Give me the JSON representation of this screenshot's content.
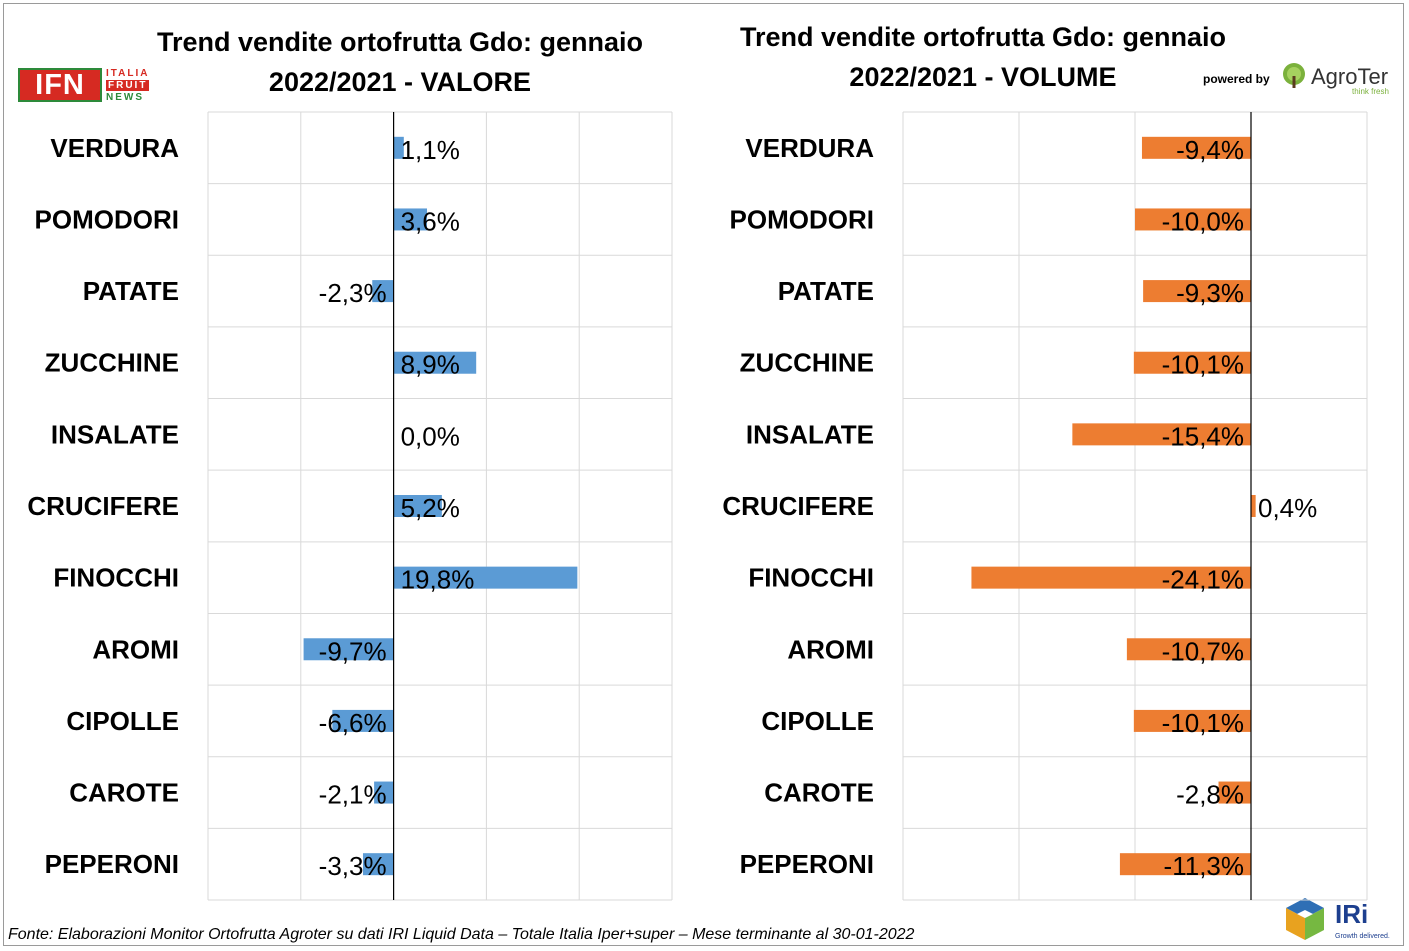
{
  "titles": {
    "left": [
      "Trend vendite ortofrutta Gdo: gennaio",
      "2022/2021 - VALORE"
    ],
    "right": [
      "Trend vendite ortofrutta Gdo: gennaio",
      "2022/2021 - VOLUME"
    ]
  },
  "logos": {
    "ifn": {
      "main": "IFN",
      "line1": "ITALIA",
      "line2": "FRUIT",
      "line3": "NEWS"
    },
    "powered_by": "powered by",
    "agroter": {
      "name": "AgroTer",
      "tagline": "think fresh"
    },
    "iri": {
      "name": "IRi",
      "tagline": "Growth delivered."
    }
  },
  "footer": "Fonte: Elaborazioni Monitor Ortofrutta Agroter su dati IRI Liquid Data – Totale Italia Iper+super – Mese terminante al 30-01-2022",
  "colors": {
    "valore": "#5b9bd5",
    "volume": "#ed7d31",
    "grid": "#d9d9d9",
    "axis": "#000000"
  },
  "chart_data": [
    {
      "type": "bar",
      "orientation": "horizontal",
      "title": "Trend vendite ortofrutta Gdo: gennaio 2022/2021 - VALORE",
      "categories": [
        "VERDURA",
        "POMODORI",
        "PATATE",
        "ZUCCHINE",
        "INSALATE",
        "CRUCIFERE",
        "FINOCCHI",
        "AROMI",
        "CIPOLLE",
        "CAROTE",
        "PEPERONI"
      ],
      "values": [
        1.1,
        3.6,
        -2.3,
        8.9,
        0.0,
        5.2,
        19.8,
        -9.7,
        -6.6,
        -2.1,
        -3.3
      ],
      "labels": [
        "1,1%",
        "3,6%",
        "-2,3%",
        "8,9%",
        "0,0%",
        "5,2%",
        "19,8%",
        "-9,7%",
        "-6,6%",
        "-2,1%",
        "-3,3%"
      ],
      "xlim": [
        -20,
        30
      ],
      "grid": true,
      "color": "#5b9bd5"
    },
    {
      "type": "bar",
      "orientation": "horizontal",
      "title": "Trend vendite ortofrutta Gdo: gennaio 2022/2021 - VOLUME",
      "categories": [
        "VERDURA",
        "POMODORI",
        "PATATE",
        "ZUCCHINE",
        "INSALATE",
        "CRUCIFERE",
        "FINOCCHI",
        "AROMI",
        "CIPOLLE",
        "CAROTE",
        "PEPERONI"
      ],
      "values": [
        -9.4,
        -10.0,
        -9.3,
        -10.1,
        -15.4,
        0.4,
        -24.1,
        -10.7,
        -10.1,
        -2.8,
        -11.3
      ],
      "labels": [
        "-9,4%",
        "-10,0%",
        "-9,3%",
        "-10,1%",
        "-15,4%",
        "0,4%",
        "-24,1%",
        "-10,7%",
        "-10,1%",
        "-2,8%",
        "-11,3%"
      ],
      "xlim": [
        -30,
        10
      ],
      "grid": true,
      "color": "#ed7d31"
    }
  ]
}
